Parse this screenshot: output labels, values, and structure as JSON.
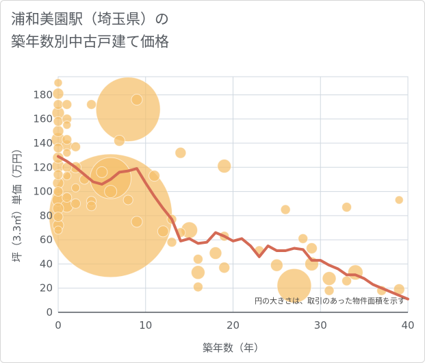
{
  "title": {
    "line1": "浦和美園駅（埼玉県）の",
    "line2": "築年数別中古戸建て価格"
  },
  "note": "円の大きさは、取引のあった物件面積を示す",
  "colors": {
    "bubble": "#f5bf69",
    "line": "#d46a55",
    "grid": "#d0d8e0",
    "axis": "#555a60"
  },
  "chart_data": {
    "type": "scatter",
    "xlabel": "築年数（年）",
    "ylabel": "坪（3.3㎡）単価（万円）",
    "xlim": [
      0,
      40
    ],
    "ylim": [
      0,
      195
    ],
    "xticks": [
      0,
      10,
      20,
      30,
      40
    ],
    "yticks": [
      0,
      20,
      40,
      60,
      80,
      100,
      120,
      140,
      160,
      180
    ],
    "grid": true,
    "bubbles": [
      {
        "x": 0,
        "y": 190,
        "r": 6
      },
      {
        "x": 0,
        "y": 181,
        "r": 8
      },
      {
        "x": 0,
        "y": 172,
        "r": 7
      },
      {
        "x": 0,
        "y": 165,
        "r": 9
      },
      {
        "x": 0,
        "y": 158,
        "r": 7
      },
      {
        "x": 0,
        "y": 150,
        "r": 8
      },
      {
        "x": 0,
        "y": 143,
        "r": 10
      },
      {
        "x": 0,
        "y": 136,
        "r": 7
      },
      {
        "x": 0,
        "y": 128,
        "r": 8
      },
      {
        "x": 0,
        "y": 121,
        "r": 9
      },
      {
        "x": 0,
        "y": 114,
        "r": 7
      },
      {
        "x": 0,
        "y": 107,
        "r": 8
      },
      {
        "x": 0,
        "y": 100,
        "r": 7
      },
      {
        "x": 0,
        "y": 93,
        "r": 9
      },
      {
        "x": 0,
        "y": 86,
        "r": 8
      },
      {
        "x": 0,
        "y": 79,
        "r": 7
      },
      {
        "x": 0,
        "y": 72,
        "r": 8
      },
      {
        "x": 0,
        "y": 68,
        "r": 6
      },
      {
        "x": 1,
        "y": 172,
        "r": 7
      },
      {
        "x": 1,
        "y": 160,
        "r": 7
      },
      {
        "x": 1,
        "y": 155,
        "r": 6
      },
      {
        "x": 1,
        "y": 143,
        "r": 7
      },
      {
        "x": 1,
        "y": 138,
        "r": 8
      },
      {
        "x": 1,
        "y": 132,
        "r": 6
      },
      {
        "x": 1,
        "y": 120,
        "r": 7
      },
      {
        "x": 1,
        "y": 113,
        "r": 6
      },
      {
        "x": 1,
        "y": 95,
        "r": 7
      },
      {
        "x": 1,
        "y": 88,
        "r": 9
      },
      {
        "x": 2,
        "y": 137,
        "r": 7
      },
      {
        "x": 2,
        "y": 120,
        "r": 8
      },
      {
        "x": 2,
        "y": 103,
        "r": 6
      },
      {
        "x": 2,
        "y": 90,
        "r": 7
      },
      {
        "x": 3,
        "y": 110,
        "r": 7
      },
      {
        "x": 3.8,
        "y": 172,
        "r": 7
      },
      {
        "x": 3.8,
        "y": 92,
        "r": 7
      },
      {
        "x": 3.8,
        "y": 88,
        "r": 7
      },
      {
        "x": 5,
        "y": 116,
        "r": 8
      },
      {
        "x": 6,
        "y": 111,
        "r": 30
      },
      {
        "x": 6,
        "y": 100,
        "r": 9
      },
      {
        "x": 6,
        "y": 80,
        "r": 90
      },
      {
        "x": 7,
        "y": 142,
        "r": 8
      },
      {
        "x": 8,
        "y": 168,
        "r": 47
      },
      {
        "x": 8,
        "y": 93,
        "r": 7
      },
      {
        "x": 9,
        "y": 176,
        "r": 8
      },
      {
        "x": 9,
        "y": 75,
        "r": 8
      },
      {
        "x": 11,
        "y": 113,
        "r": 8
      },
      {
        "x": 12,
        "y": 67,
        "r": 8
      },
      {
        "x": 13,
        "y": 77,
        "r": 7
      },
      {
        "x": 13,
        "y": 58,
        "r": 7
      },
      {
        "x": 14,
        "y": 132,
        "r": 8
      },
      {
        "x": 14,
        "y": 66,
        "r": 7
      },
      {
        "x": 15,
        "y": 68,
        "r": 12
      },
      {
        "x": 16,
        "y": 44,
        "r": 7
      },
      {
        "x": 16,
        "y": 33,
        "r": 10
      },
      {
        "x": 16,
        "y": 21,
        "r": 7
      },
      {
        "x": 18,
        "y": 49,
        "r": 9
      },
      {
        "x": 19,
        "y": 121,
        "r": 10
      },
      {
        "x": 19,
        "y": 63,
        "r": 7
      },
      {
        "x": 19,
        "y": 37,
        "r": 8
      },
      {
        "x": 23,
        "y": 51,
        "r": 7
      },
      {
        "x": 25,
        "y": 39,
        "r": 9
      },
      {
        "x": 26,
        "y": 85,
        "r": 7
      },
      {
        "x": 27,
        "y": 22,
        "r": 25
      },
      {
        "x": 28,
        "y": 61,
        "r": 7
      },
      {
        "x": 29,
        "y": 53,
        "r": 8
      },
      {
        "x": 29,
        "y": 40,
        "r": 10
      },
      {
        "x": 31,
        "y": 28,
        "r": 10
      },
      {
        "x": 31,
        "y": 18,
        "r": 7
      },
      {
        "x": 33,
        "y": 87,
        "r": 7
      },
      {
        "x": 33,
        "y": 26,
        "r": 7
      },
      {
        "x": 34,
        "y": 33,
        "r": 11
      },
      {
        "x": 37,
        "y": 18,
        "r": 7
      },
      {
        "x": 39,
        "y": 93,
        "r": 6
      },
      {
        "x": 39,
        "y": 19,
        "r": 8
      }
    ],
    "trend": {
      "x": [
        0,
        1,
        2,
        3,
        4,
        5,
        6,
        7,
        8,
        9,
        10,
        11,
        12,
        13,
        14,
        15,
        16,
        17,
        18,
        19,
        20,
        21,
        22,
        23,
        24,
        25,
        26,
        27,
        28,
        29,
        30,
        31,
        32,
        33,
        34,
        35,
        36,
        37,
        38,
        39,
        40
      ],
      "y": [
        129,
        125,
        120,
        114,
        108,
        106,
        110,
        116,
        117,
        119,
        107,
        96,
        86,
        77,
        59,
        61,
        57,
        58,
        66,
        63,
        59,
        61,
        55,
        46,
        55,
        51,
        51,
        53,
        52,
        43,
        43,
        39,
        36,
        31,
        31,
        28,
        23,
        20,
        17,
        14,
        11
      ]
    }
  }
}
